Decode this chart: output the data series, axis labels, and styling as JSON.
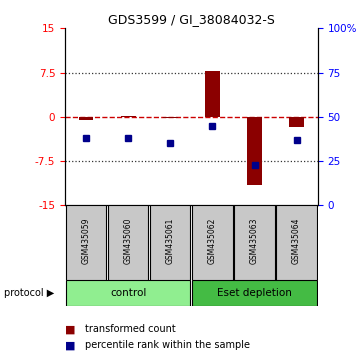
{
  "title": "GDS3599 / GI_38084032-S",
  "samples": [
    "GSM435059",
    "GSM435060",
    "GSM435061",
    "GSM435062",
    "GSM435063",
    "GSM435064"
  ],
  "transformed_counts": [
    -0.5,
    0.1,
    -0.2,
    7.8,
    -11.5,
    -1.8
  ],
  "percentile_ranks": [
    38,
    38,
    35,
    45,
    23,
    37
  ],
  "protocol_groups": [
    {
      "label": "control",
      "indices": [
        0,
        1,
        2
      ],
      "color": "#90ee90"
    },
    {
      "label": "Eset depletion",
      "indices": [
        3,
        4,
        5
      ],
      "color": "#44bb44"
    }
  ],
  "ylim": [
    -15,
    15
  ],
  "yticks_left": [
    -15,
    -7.5,
    0,
    7.5,
    15
  ],
  "yticks_right": [
    0,
    25,
    50,
    75,
    100
  ],
  "right_tick_labels": [
    "0",
    "25",
    "50",
    "75",
    "100%"
  ],
  "bar_color": "#8B0000",
  "dot_color": "#00008B",
  "zero_line_color": "#cc0000",
  "dotted_line_color": "#333333",
  "background_color": "#ffffff",
  "legend_red_label": "transformed count",
  "legend_blue_label": "percentile rank within the sample"
}
